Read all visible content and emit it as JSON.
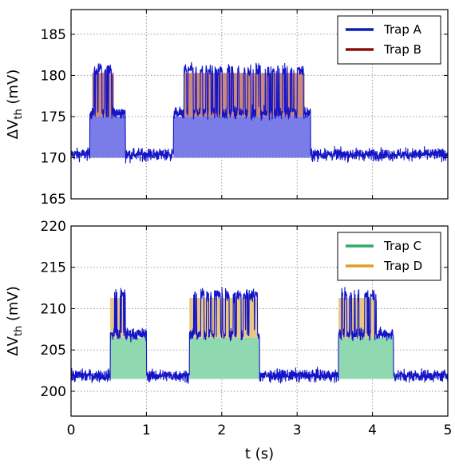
{
  "chart_data": [
    {
      "type": "line",
      "panel": "top",
      "xlabel": "",
      "ylabel": "ΔV_th (mV)",
      "ylabel_main": "ΔV",
      "ylabel_sub": "th",
      "ylabel_unit": " (mV)",
      "xlim": [
        0,
        5
      ],
      "ylim": [
        165,
        188
      ],
      "yticks": [
        165,
        170,
        175,
        180,
        185
      ],
      "xticks": [
        0,
        1,
        2,
        3,
        4,
        5
      ],
      "grid": true,
      "legend_position": "top-right",
      "baseline": 170,
      "trace_color": "#1414c8",
      "series": [
        {
          "name": "Trap A",
          "color": "#0a1fb4",
          "fill": "#7a7ce8",
          "amplitude_mV": 5,
          "intervals": [
            [
              0.25,
              0.72
            ],
            [
              1.36,
              3.18
            ]
          ]
        },
        {
          "name": "Trap B",
          "color": "#8b0f0f",
          "fill": "#c9897e",
          "amplitude_mV": 5.3,
          "intervals": [
            [
              0.28,
              0.57
            ],
            [
              1.5,
              3.1
            ]
          ]
        }
      ]
    },
    {
      "type": "line",
      "panel": "bottom",
      "xlabel": "t (s)",
      "ylabel": "ΔV_th (mV)",
      "ylabel_main": "ΔV",
      "ylabel_sub": "th",
      "ylabel_unit": " (mV)",
      "xlim": [
        0,
        5
      ],
      "ylim": [
        197,
        220
      ],
      "yticks": [
        200,
        205,
        210,
        215,
        220
      ],
      "xticks": [
        0,
        1,
        2,
        3,
        4,
        5
      ],
      "grid": true,
      "legend_position": "top-right",
      "baseline": 201.5,
      "trace_color": "#1414c8",
      "series": [
        {
          "name": "Trap C",
          "color": "#2eaa68",
          "fill": "#8fd8b0",
          "amplitude_mV": 5,
          "intervals": [
            [
              0.52,
              1.0
            ],
            [
              1.57,
              2.5
            ],
            [
              3.55,
              4.28
            ]
          ]
        },
        {
          "name": "Trap D",
          "color": "#e0a020",
          "fill": "#e8c888",
          "amplitude_mV": 4.8,
          "intervals": [
            [
              0.52,
              0.72
            ],
            [
              1.57,
              2.48
            ],
            [
              3.55,
              4.05
            ]
          ]
        }
      ]
    }
  ]
}
